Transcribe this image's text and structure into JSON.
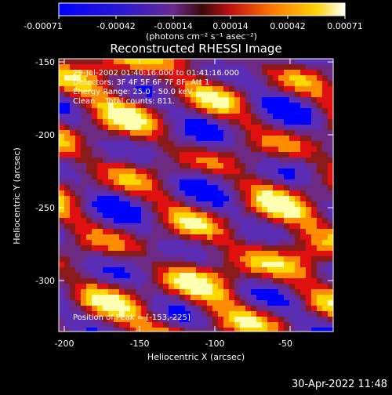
{
  "colorbar": {
    "ticks": [
      "-0.00071",
      "-0.00042",
      "-0.00014",
      "0.00014",
      "0.00042",
      "0.00071"
    ],
    "unit_label": "(photons cm⁻² s⁻¹ asec⁻²)"
  },
  "title": "Reconstructed RHESSI Image",
  "annotations": {
    "time": "29-Jul-2002 01:40:16.000 to 01:41:16.000",
    "detectors": "Detectors: 3F 4F 5F 6F 7F 8F, Att 1",
    "energy": "Energy Range: 25.0 - 50.0 keV",
    "clean": "Clean    Total counts: 811.",
    "peak": "Position of Peak = [-153,-225]"
  },
  "axes": {
    "xlabel": "Heliocentric X (arcsec)",
    "ylabel": "Heliocentric Y (arcsec)",
    "xticks": [
      "-200",
      "-150",
      "-100",
      "-50"
    ],
    "yticks": [
      "-150",
      "-200",
      "-250",
      "-300"
    ]
  },
  "footer_timestamp": "30-Apr-2022 11:48",
  "colors": {
    "background": "#000000",
    "text": "#ffffff",
    "colormap": [
      "#0000ff",
      "#5a2db4",
      "#6e2a82",
      "#8b1a1a",
      "#e01010",
      "#ff8c00",
      "#ffd700",
      "#ffffb0"
    ]
  }
}
